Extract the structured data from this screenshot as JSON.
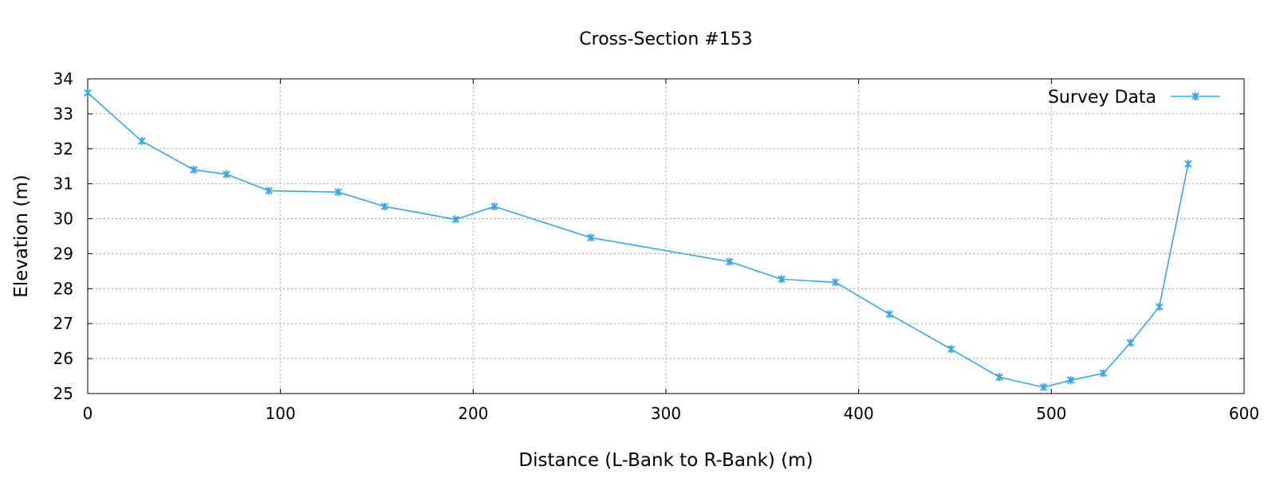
{
  "chart_data": {
    "type": "line",
    "title": "Cross-Section #153",
    "xlabel": "Distance (L-Bank to R-Bank) (m)",
    "ylabel": "Elevation (m)",
    "xlim": [
      0,
      600
    ],
    "ylim": [
      25,
      34
    ],
    "xticks": [
      "0",
      "100",
      "200",
      "300",
      "400",
      "500",
      "600"
    ],
    "yticks": [
      "25",
      "26",
      "27",
      "28",
      "29",
      "30",
      "31",
      "32",
      "33",
      "34"
    ],
    "grid": true,
    "legend_position": "top-right",
    "series": [
      {
        "name": "Survey Data",
        "color": "#3aa6de",
        "marker": "x",
        "x": [
          0,
          28,
          55,
          72,
          94,
          130,
          154,
          191,
          211,
          261,
          333,
          360,
          388,
          416,
          448,
          473,
          496,
          510,
          527,
          541,
          556,
          571
        ],
        "y": [
          33.6,
          32.22,
          31.4,
          31.27,
          30.8,
          30.76,
          30.35,
          29.98,
          30.35,
          29.46,
          28.77,
          28.27,
          28.18,
          27.27,
          26.27,
          25.47,
          25.18,
          25.38,
          25.58,
          26.45,
          27.48,
          31.57
        ]
      }
    ]
  }
}
